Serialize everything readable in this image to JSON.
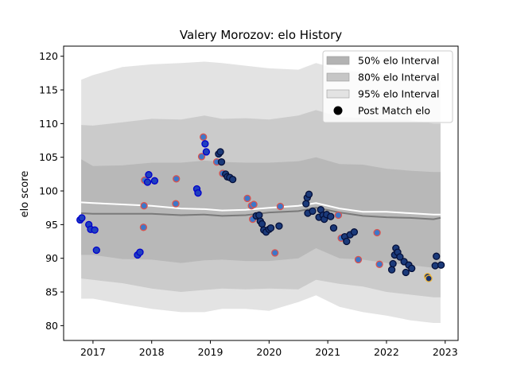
{
  "chart_data": {
    "type": "scatter",
    "title": "Valery Morozov: elo History",
    "xlabel": "",
    "ylabel": "elo score",
    "xlim": [
      2016.5,
      2023.22
    ],
    "ylim": [
      77.8,
      121.5
    ],
    "x_ticks": [
      2017,
      2018,
      2019,
      2020,
      2021,
      2022,
      2023
    ],
    "y_ticks": [
      80,
      85,
      90,
      95,
      100,
      105,
      110,
      115,
      120
    ],
    "grid": false,
    "legend_position": "top-right",
    "legend": [
      {
        "label": "50% elo Interval",
        "kind": "band",
        "color": "#b3b3b3"
      },
      {
        "label": "80% elo Interval",
        "kind": "band",
        "color": "#c6c6c6"
      },
      {
        "label": "95% elo Interval",
        "kind": "band",
        "color": "#e3e3e3"
      },
      {
        "label": "Post Match elo",
        "kind": "marker",
        "color": "#000000"
      }
    ],
    "bands": {
      "x": [
        2016.8,
        2017.0,
        2017.5,
        2018.0,
        2018.5,
        2018.9,
        2019.2,
        2019.6,
        2020.0,
        2020.5,
        2020.8,
        2021.2,
        2021.6,
        2022.0,
        2022.4,
        2022.8,
        2022.92
      ],
      "p95_upper": [
        116.5,
        117.2,
        118.4,
        118.8,
        119.0,
        119.2,
        119.0,
        118.6,
        118.2,
        118.0,
        119.0,
        118.0,
        117.6,
        117.2,
        116.5,
        116.3,
        116.3
      ],
      "p95_lower": [
        84.0,
        84.0,
        83.2,
        82.5,
        82.0,
        82.0,
        82.5,
        82.5,
        82.2,
        83.5,
        84.5,
        82.8,
        82.0,
        81.5,
        80.8,
        80.4,
        80.4
      ],
      "p80_upper": [
        109.8,
        109.7,
        110.2,
        110.7,
        110.6,
        111.2,
        110.7,
        110.8,
        110.6,
        111.2,
        112.0,
        111.0,
        110.8,
        110.7,
        110.5,
        110.0,
        110.0
      ],
      "p80_lower": [
        87.0,
        86.8,
        86.3,
        85.5,
        85.0,
        85.3,
        85.5,
        85.4,
        85.5,
        85.4,
        86.8,
        86.2,
        85.8,
        85.0,
        84.6,
        84.2,
        84.2
      ],
      "p50_upper": [
        104.7,
        103.7,
        103.8,
        104.2,
        104.2,
        104.5,
        104.3,
        104.2,
        104.2,
        104.4,
        105.0,
        104.0,
        103.9,
        103.3,
        103.0,
        102.8,
        102.8
      ],
      "p50_lower": [
        90.5,
        90.5,
        89.9,
        89.8,
        89.3,
        89.7,
        89.8,
        89.6,
        89.6,
        90.0,
        91.5,
        90.0,
        89.8,
        89.3,
        89.0,
        88.6,
        88.6
      ],
      "median": [
        96.7,
        96.6,
        96.6,
        96.6,
        96.4,
        96.5,
        96.3,
        96.4,
        96.8,
        97.0,
        97.5,
        96.8,
        96.3,
        96.1,
        96.0,
        95.8,
        96.0
      ],
      "mean": [
        98.3,
        98.2,
        98.0,
        97.8,
        97.4,
        97.3,
        97.1,
        97.2,
        97.5,
        97.8,
        98.2,
        97.4,
        96.9,
        96.9,
        96.7,
        96.5,
        96.5
      ]
    },
    "series": [
      {
        "name": "Post Match elo",
        "points": [
          {
            "x": 2016.78,
            "y": 95.7,
            "c": "b"
          },
          {
            "x": 2016.81,
            "y": 96.0,
            "c": "b"
          },
          {
            "x": 2016.93,
            "y": 95.0,
            "c": "b"
          },
          {
            "x": 2016.96,
            "y": 94.3,
            "c": "b"
          },
          {
            "x": 2017.03,
            "y": 94.2,
            "c": "b"
          },
          {
            "x": 2017.06,
            "y": 91.2,
            "c": "b"
          },
          {
            "x": 2017.76,
            "y": 90.5,
            "c": "b"
          },
          {
            "x": 2017.8,
            "y": 90.9,
            "c": "b"
          },
          {
            "x": 2017.86,
            "y": 94.6,
            "c": "r"
          },
          {
            "x": 2017.87,
            "y": 97.8,
            "c": "r"
          },
          {
            "x": 2017.88,
            "y": 101.6,
            "c": "r"
          },
          {
            "x": 2017.93,
            "y": 101.3,
            "c": "b"
          },
          {
            "x": 2017.95,
            "y": 102.4,
            "c": "b"
          },
          {
            "x": 2018.05,
            "y": 101.5,
            "c": "b"
          },
          {
            "x": 2018.42,
            "y": 101.8,
            "c": "r"
          },
          {
            "x": 2018.41,
            "y": 98.1,
            "c": "r"
          },
          {
            "x": 2018.77,
            "y": 100.3,
            "c": "b"
          },
          {
            "x": 2018.79,
            "y": 99.7,
            "c": "b"
          },
          {
            "x": 2018.85,
            "y": 105.1,
            "c": "r"
          },
          {
            "x": 2018.88,
            "y": 108.0,
            "c": "r"
          },
          {
            "x": 2018.91,
            "y": 107.0,
            "c": "b"
          },
          {
            "x": 2018.93,
            "y": 105.8,
            "c": "b"
          },
          {
            "x": 2019.11,
            "y": 104.3,
            "c": "r"
          },
          {
            "x": 2019.14,
            "y": 105.5,
            "c": "n"
          },
          {
            "x": 2019.17,
            "y": 105.8,
            "c": "n"
          },
          {
            "x": 2019.19,
            "y": 104.3,
            "c": "n"
          },
          {
            "x": 2019.21,
            "y": 102.6,
            "c": "r"
          },
          {
            "x": 2019.26,
            "y": 102.5,
            "c": "n"
          },
          {
            "x": 2019.29,
            "y": 102.1,
            "c": "n"
          },
          {
            "x": 2019.33,
            "y": 102.0,
            "c": "n"
          },
          {
            "x": 2019.38,
            "y": 101.7,
            "c": "n"
          },
          {
            "x": 2019.63,
            "y": 98.9,
            "c": "r"
          },
          {
            "x": 2019.7,
            "y": 97.8,
            "c": "r"
          },
          {
            "x": 2019.74,
            "y": 98.0,
            "c": "r"
          },
          {
            "x": 2019.72,
            "y": 95.8,
            "c": "r"
          },
          {
            "x": 2019.78,
            "y": 96.3,
            "c": "n"
          },
          {
            "x": 2019.83,
            "y": 96.4,
            "c": "n"
          },
          {
            "x": 2019.85,
            "y": 95.5,
            "c": "n"
          },
          {
            "x": 2019.88,
            "y": 95.1,
            "c": "n"
          },
          {
            "x": 2019.91,
            "y": 94.2,
            "c": "n"
          },
          {
            "x": 2019.95,
            "y": 93.9,
            "c": "n"
          },
          {
            "x": 2020.0,
            "y": 94.3,
            "c": "n"
          },
          {
            "x": 2020.03,
            "y": 94.5,
            "c": "n"
          },
          {
            "x": 2020.1,
            "y": 90.8,
            "c": "r"
          },
          {
            "x": 2020.17,
            "y": 94.8,
            "c": "n"
          },
          {
            "x": 2020.19,
            "y": 97.7,
            "c": "r"
          },
          {
            "x": 2020.63,
            "y": 98.1,
            "c": "n"
          },
          {
            "x": 2020.65,
            "y": 99.0,
            "c": "n"
          },
          {
            "x": 2020.68,
            "y": 99.5,
            "c": "n"
          },
          {
            "x": 2020.66,
            "y": 96.7,
            "c": "n"
          },
          {
            "x": 2020.74,
            "y": 97.0,
            "c": "n"
          },
          {
            "x": 2020.85,
            "y": 96.1,
            "c": "n"
          },
          {
            "x": 2020.88,
            "y": 97.2,
            "c": "n"
          },
          {
            "x": 2020.92,
            "y": 96.4,
            "c": "n"
          },
          {
            "x": 2020.94,
            "y": 95.8,
            "c": "n"
          },
          {
            "x": 2020.98,
            "y": 96.5,
            "c": "n"
          },
          {
            "x": 2021.05,
            "y": 96.2,
            "c": "n"
          },
          {
            "x": 2021.1,
            "y": 94.5,
            "c": "n"
          },
          {
            "x": 2021.18,
            "y": 96.4,
            "c": "r"
          },
          {
            "x": 2021.23,
            "y": 93.0,
            "c": "r"
          },
          {
            "x": 2021.29,
            "y": 93.2,
            "c": "n"
          },
          {
            "x": 2021.32,
            "y": 92.5,
            "c": "n"
          },
          {
            "x": 2021.38,
            "y": 93.5,
            "c": "n"
          },
          {
            "x": 2021.45,
            "y": 93.9,
            "c": "n"
          },
          {
            "x": 2021.52,
            "y": 89.8,
            "c": "r"
          },
          {
            "x": 2021.84,
            "y": 93.8,
            "c": "r"
          },
          {
            "x": 2021.88,
            "y": 89.1,
            "c": "r"
          },
          {
            "x": 2022.09,
            "y": 88.3,
            "c": "n"
          },
          {
            "x": 2022.11,
            "y": 89.2,
            "c": "n"
          },
          {
            "x": 2022.14,
            "y": 90.5,
            "c": "n"
          },
          {
            "x": 2022.16,
            "y": 91.5,
            "c": "n"
          },
          {
            "x": 2022.19,
            "y": 90.9,
            "c": "n"
          },
          {
            "x": 2022.23,
            "y": 90.2,
            "c": "n"
          },
          {
            "x": 2022.3,
            "y": 89.5,
            "c": "n"
          },
          {
            "x": 2022.33,
            "y": 87.9,
            "c": "n"
          },
          {
            "x": 2022.38,
            "y": 89.0,
            "c": "n"
          },
          {
            "x": 2022.43,
            "y": 88.5,
            "c": "n"
          },
          {
            "x": 2022.7,
            "y": 87.3,
            "c": "o"
          },
          {
            "x": 2022.72,
            "y": 87.0,
            "c": "o"
          },
          {
            "x": 2022.85,
            "y": 90.3,
            "c": "n"
          },
          {
            "x": 2022.83,
            "y": 88.9,
            "c": "n"
          },
          {
            "x": 2022.93,
            "y": 89.0,
            "c": "n"
          }
        ]
      }
    ]
  },
  "marker_colors": {
    "b": {
      "fill": "#1f3fbf",
      "edge": "#0000cc"
    },
    "r": {
      "fill": "#3d77c9",
      "edge": "#d9534f"
    },
    "n": {
      "fill": "#1b3a7a",
      "edge": "#05103a"
    },
    "o": {
      "fill": "#16306e",
      "edge": "#f0b83a"
    }
  }
}
